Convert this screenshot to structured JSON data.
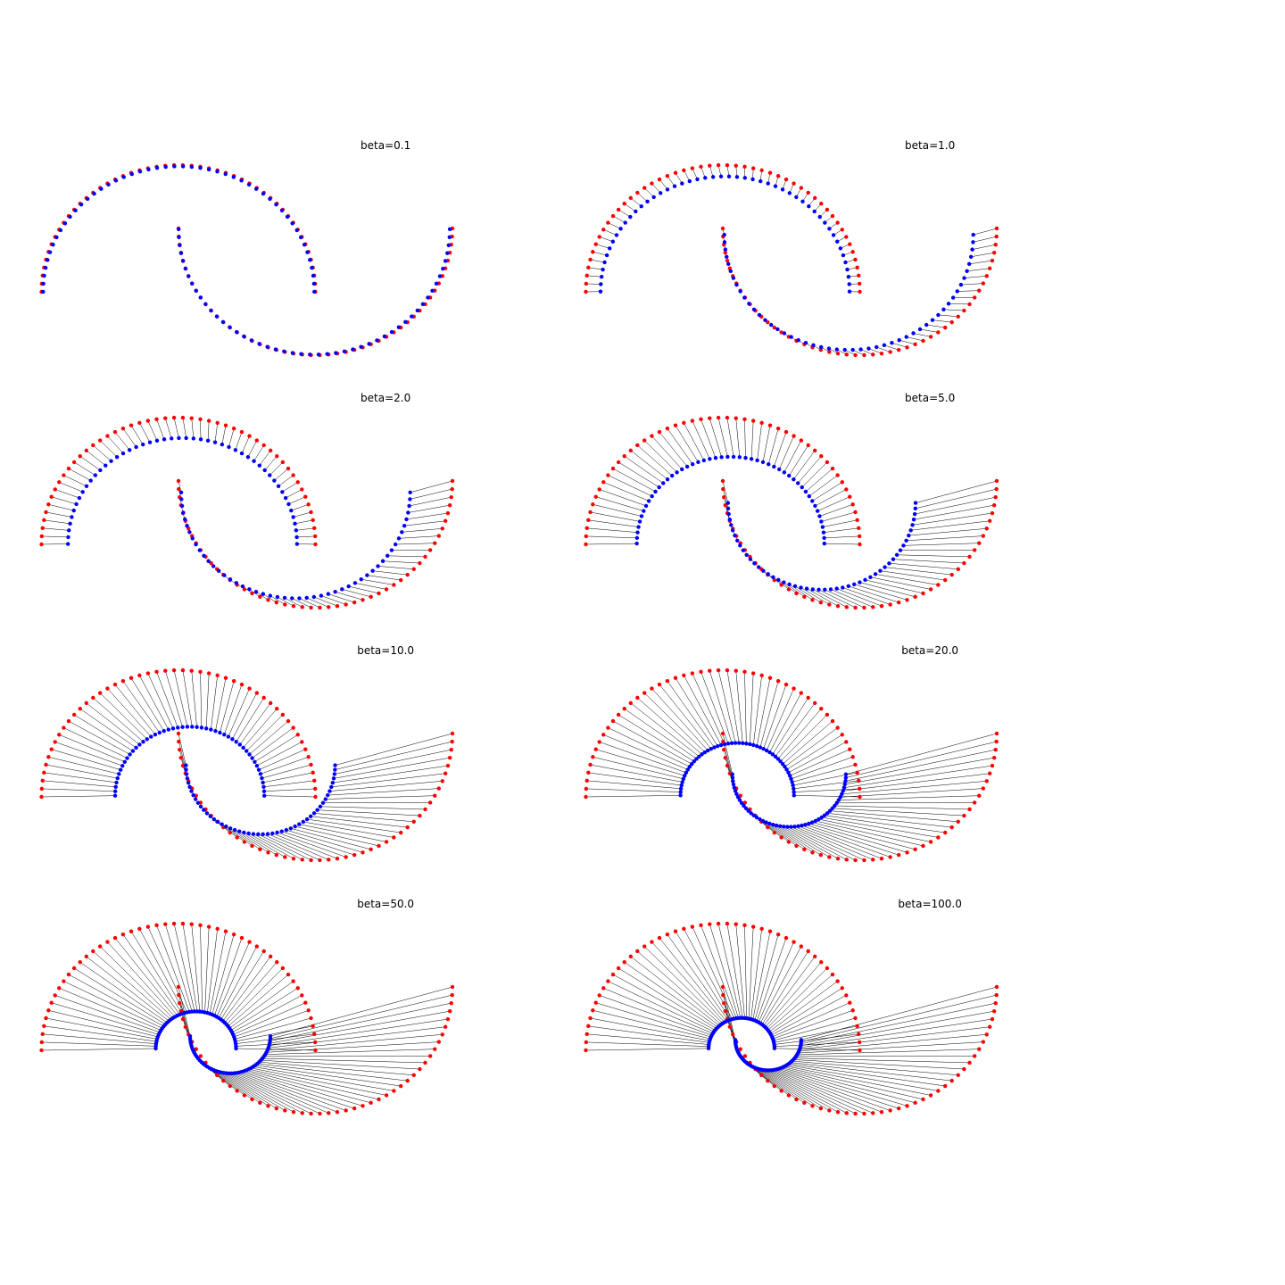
{
  "chart_data": [
    {
      "type": "scatter",
      "title": "beta=0.1",
      "beta": 0.1,
      "grid": false,
      "axis": "off",
      "legend": "none",
      "series": [
        {
          "color": "#ff0000",
          "marker": "dot"
        },
        {
          "color": "#0000ff",
          "marker": "dot"
        }
      ],
      "connector_color": "#000000"
    },
    {
      "type": "scatter",
      "title": "beta=1.0",
      "beta": 1.0,
      "grid": false,
      "axis": "off",
      "legend": "none",
      "series": [
        {
          "color": "#ff0000",
          "marker": "dot"
        },
        {
          "color": "#0000ff",
          "marker": "dot"
        }
      ],
      "connector_color": "#000000"
    },
    {
      "type": "scatter",
      "title": "beta=2.0",
      "beta": 2.0,
      "grid": false,
      "axis": "off",
      "legend": "none",
      "series": [
        {
          "color": "#ff0000",
          "marker": "dot"
        },
        {
          "color": "#0000ff",
          "marker": "dot"
        }
      ],
      "connector_color": "#000000"
    },
    {
      "type": "scatter",
      "title": "beta=5.0",
      "beta": 5.0,
      "grid": false,
      "axis": "off",
      "legend": "none",
      "series": [
        {
          "color": "#ff0000",
          "marker": "dot"
        },
        {
          "color": "#0000ff",
          "marker": "dot"
        }
      ],
      "connector_color": "#000000"
    },
    {
      "type": "scatter",
      "title": "beta=10.0",
      "beta": 10.0,
      "grid": false,
      "axis": "off",
      "legend": "none",
      "series": [
        {
          "color": "#ff0000",
          "marker": "dot"
        },
        {
          "color": "#0000ff",
          "marker": "dot"
        }
      ],
      "connector_color": "#000000"
    },
    {
      "type": "scatter",
      "title": "beta=20.0",
      "beta": 20.0,
      "grid": false,
      "axis": "off",
      "legend": "none",
      "series": [
        {
          "color": "#ff0000",
          "marker": "dot"
        },
        {
          "color": "#0000ff",
          "marker": "dot"
        }
      ],
      "connector_color": "#000000"
    },
    {
      "type": "scatter",
      "title": "beta=50.0",
      "beta": 50.0,
      "grid": false,
      "axis": "off",
      "legend": "none",
      "series": [
        {
          "color": "#ff0000",
          "marker": "dot"
        },
        {
          "color": "#0000ff",
          "marker": "dot"
        }
      ],
      "connector_color": "#000000"
    },
    {
      "type": "scatter",
      "title": "beta=100.0",
      "beta": 100.0,
      "grid": false,
      "axis": "off",
      "legend": "none",
      "series": [
        {
          "color": "#ff0000",
          "marker": "dot"
        },
        {
          "color": "#0000ff",
          "marker": "dot"
        }
      ],
      "connector_color": "#000000"
    }
  ]
}
